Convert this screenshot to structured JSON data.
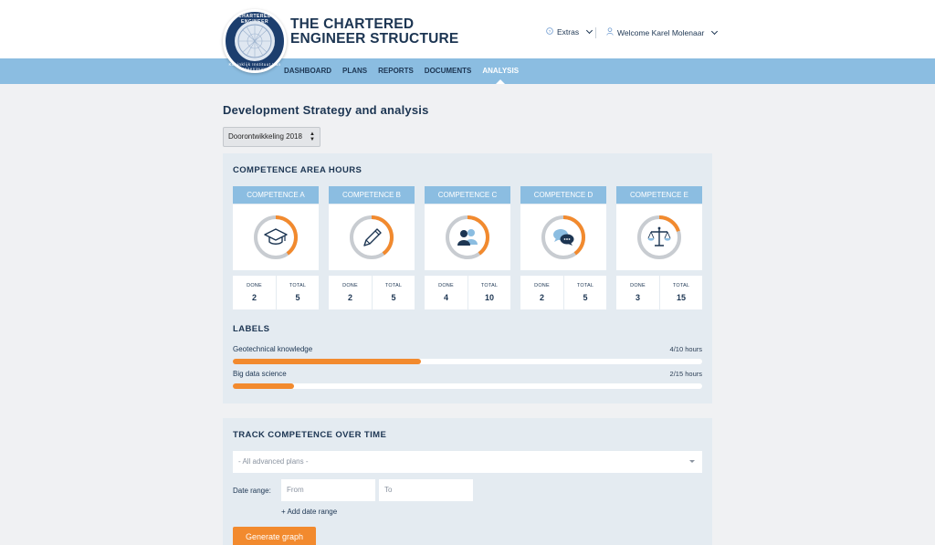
{
  "brand": {
    "line1": "THE CHARTERED",
    "line2": "ENGINEER STRUCTURE",
    "logo_text_top": "CHARTERED ENGINEER",
    "logo_text_bottom": "Koninklijk Instituut Van Ingenieurs"
  },
  "header": {
    "extras_label": "Extras",
    "welcome_label": "Welcome Karel Molenaar"
  },
  "nav": {
    "items": [
      "DASHBOARD",
      "PLANS",
      "REPORTS",
      "DOCUMENTS",
      "ANALYSIS"
    ],
    "active": "ANALYSIS"
  },
  "page": {
    "title": "Development Strategy and analysis",
    "selected_year": "Doorontwikkeling 2018"
  },
  "competence": {
    "title": "COMPETENCE AREA HOURS",
    "done_label": "DONE",
    "total_label": "TOTAL",
    "cards": [
      {
        "name": "COMPETENCE A",
        "icon": "graduation-cap-icon",
        "done": "2",
        "total": "5",
        "ratio": 0.4
      },
      {
        "name": "COMPETENCE B",
        "icon": "pencil-icon",
        "done": "2",
        "total": "5",
        "ratio": 0.4
      },
      {
        "name": "COMPETENCE C",
        "icon": "users-icon",
        "done": "4",
        "total": "10",
        "ratio": 0.4
      },
      {
        "name": "COMPETENCE D",
        "icon": "chat-bubbles-icon",
        "done": "2",
        "total": "5",
        "ratio": 0.4
      },
      {
        "name": "COMPETENCE E",
        "icon": "scales-icon",
        "done": "3",
        "total": "15",
        "ratio": 0.2
      }
    ]
  },
  "labels": {
    "title": "LABELS",
    "items": [
      {
        "name": "Geotechnical knowledge",
        "hours": "4/10 hours",
        "ratio": 0.4
      },
      {
        "name": "Big data science",
        "hours": "2/15 hours",
        "ratio": 0.13
      }
    ]
  },
  "track": {
    "title": "TRACK COMPETENCE OVER TIME",
    "plans_placeholder": "- All advanced plans -",
    "date_range_label": "Date range:",
    "from_placeholder": "From",
    "to_placeholder": "To",
    "add_range_label": "+ Add date range",
    "generate_label": "Generate graph"
  },
  "colors": {
    "accent": "#f28a2e",
    "nav_bg": "#8bbde1",
    "navy": "#1c3552",
    "ring_track": "#c8ccd1"
  }
}
